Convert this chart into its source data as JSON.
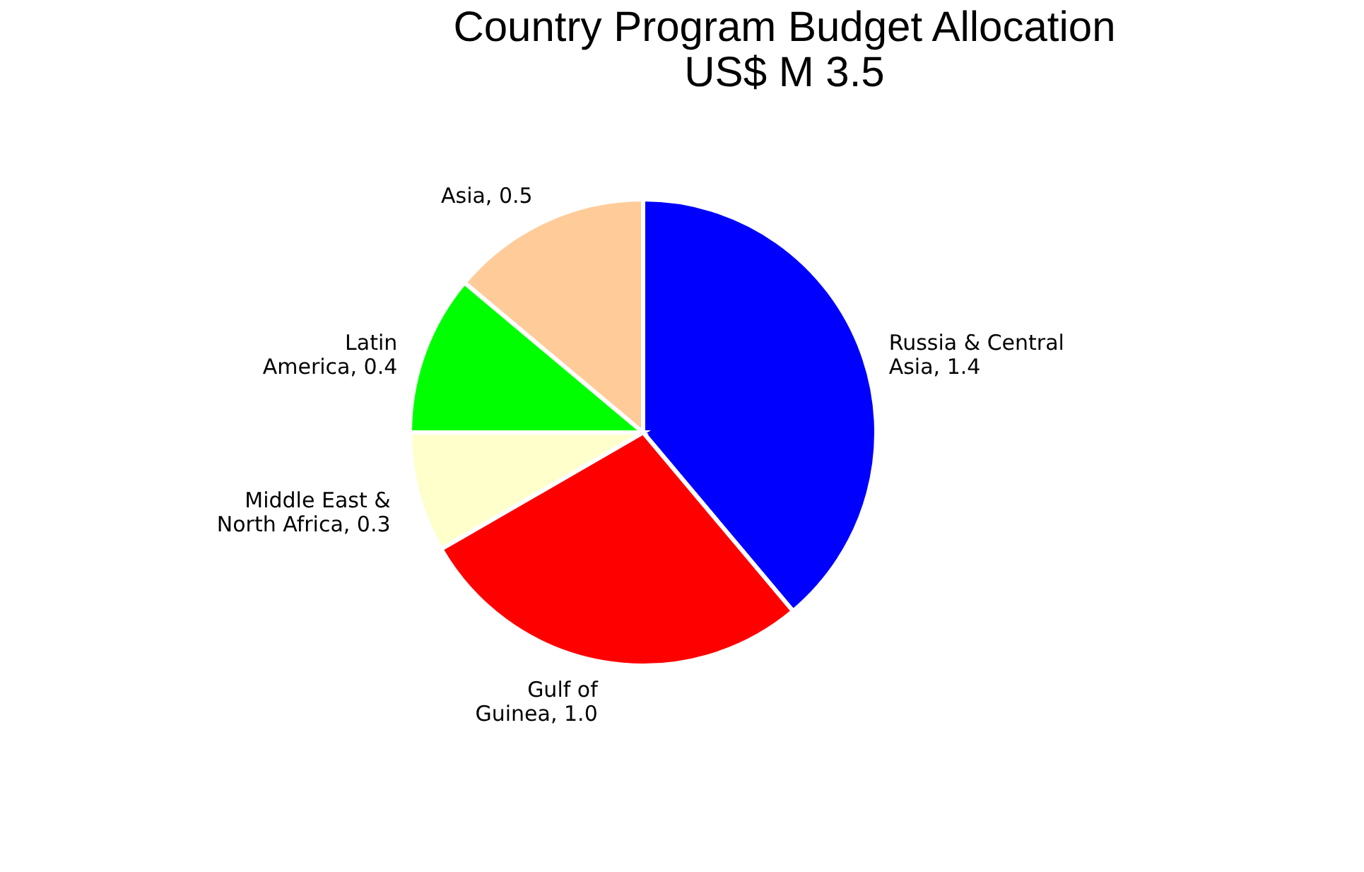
{
  "chart_data": {
    "type": "pie",
    "title": "Country Program  Budget Allocation\nUS$ M 3.5",
    "categories": [
      "Russia & Central Asia",
      "Gulf of Guinea",
      "Middle East & North Africa",
      "Latin America",
      "Asia"
    ],
    "values": [
      1.4,
      1.0,
      0.3,
      0.4,
      0.5
    ],
    "value_labels": [
      "1.4",
      "1.0",
      "0.3",
      "0.4",
      "0.5"
    ],
    "colors": [
      "#0000ff",
      "#ff0000",
      "#ffffcc",
      "#00ff00",
      "#ffcc99"
    ],
    "legend": false
  }
}
